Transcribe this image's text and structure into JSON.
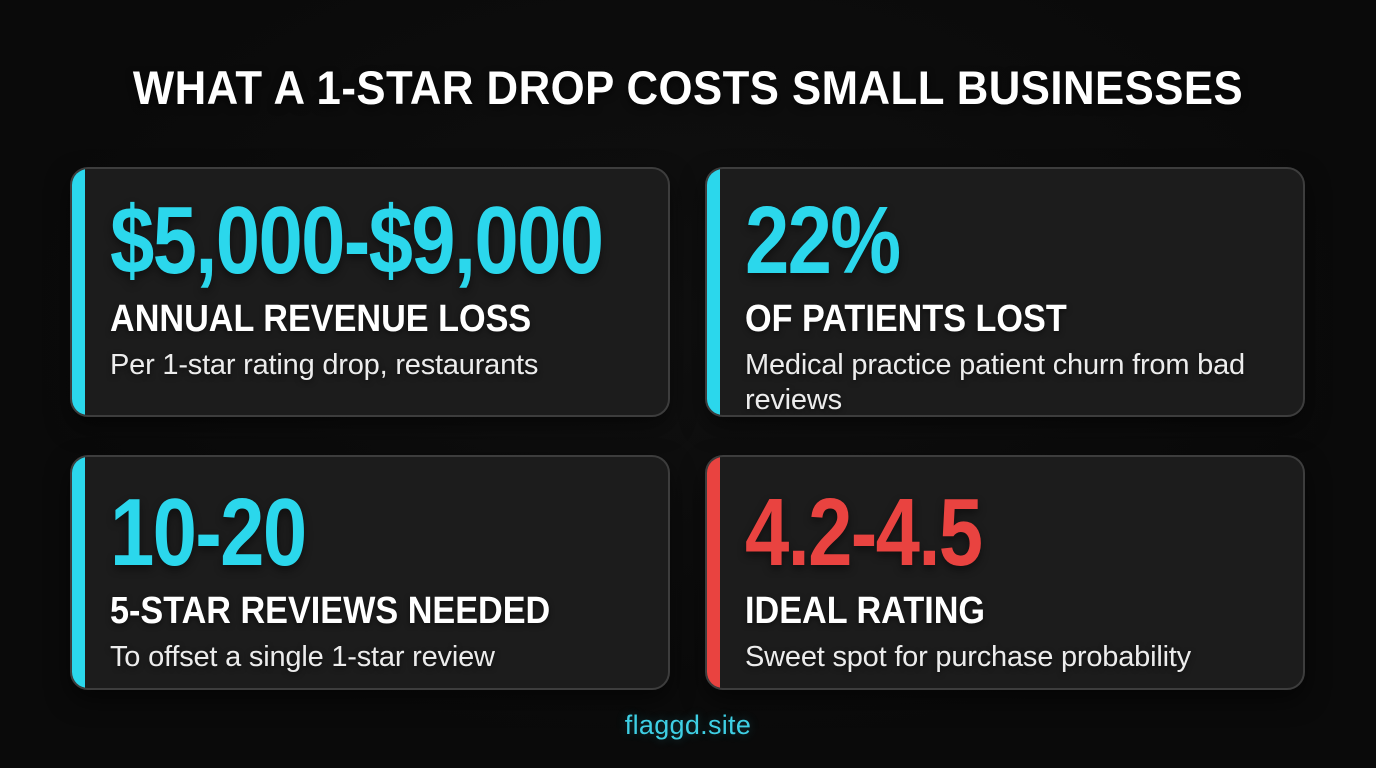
{
  "header": {
    "title": "WHAT A 1-STAR DROP COSTS SMALL BUSINESSES"
  },
  "footer": {
    "site": "flaggd.site"
  },
  "colors": {
    "background": "#0a0a0a",
    "card_bg": "#1c1c1c",
    "card_border": "#3d3d3d",
    "cyan": "#2bd7ec",
    "red": "#e94340",
    "heading_text": "#ffffff",
    "sub_text": "#ececec",
    "footer_text": "#3ecfe4"
  },
  "cards": [
    {
      "value": "$5,000-$9,000",
      "label": "ANNUAL REVENUE LOSS",
      "description": "Per 1-star rating drop, restaurants",
      "accent": "cyan"
    },
    {
      "value": "22%",
      "label": "OF PATIENTS LOST",
      "description": "Medical practice patient churn from bad reviews",
      "accent": "cyan"
    },
    {
      "value": "10-20",
      "label": "5-STAR REVIEWS NEEDED",
      "description": "To offset a single 1-star review",
      "accent": "cyan"
    },
    {
      "value": "4.2-4.5",
      "label": "IDEAL RATING",
      "description": "Sweet spot for purchase probability",
      "accent": "red"
    }
  ],
  "chart_data": {
    "type": "table",
    "title": "WHAT A 1-STAR DROP COSTS SMALL BUSINESSES",
    "columns": [
      "value",
      "label",
      "description"
    ],
    "rows": [
      [
        "$5,000-$9,000",
        "ANNUAL REVENUE LOSS",
        "Per 1-star rating drop, restaurants"
      ],
      [
        "22%",
        "OF PATIENTS LOST",
        "Medical practice patient churn from bad reviews"
      ],
      [
        "10-20",
        "5-STAR REVIEWS NEEDED",
        "To offset a single 1-star review"
      ],
      [
        "4.2-4.5",
        "IDEAL RATING",
        "Sweet spot for purchase probability"
      ]
    ]
  }
}
